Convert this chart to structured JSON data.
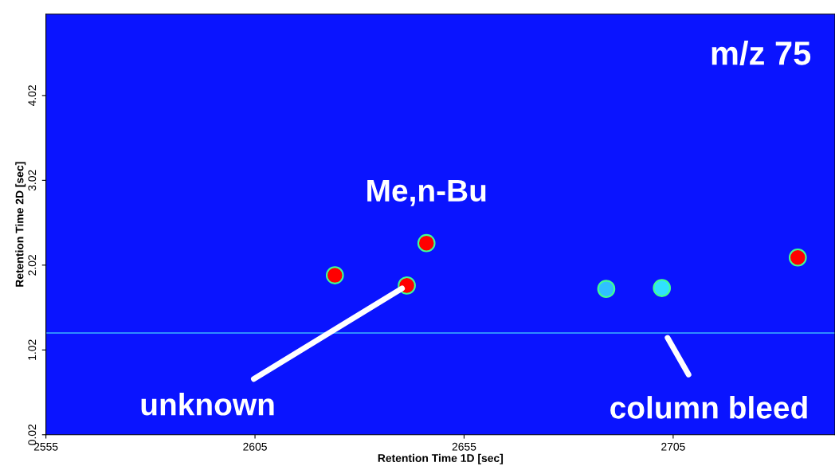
{
  "chart_data": {
    "type": "scatter",
    "xlabel": "Retention Time 1D [sec]",
    "ylabel": "Retention Time 2D [sec]",
    "x": [
      2624.1,
      2641.3,
      2646.0,
      2689.0,
      2702.3,
      2734.8
    ],
    "values": [
      1.9,
      1.78,
      2.28,
      1.74,
      1.75,
      2.11
    ],
    "colors": [
      "#ff0000",
      "#ff0000",
      "#ff0000",
      "#30c0ff",
      "#30e0ff",
      "#ff0000"
    ],
    "marker": "circle",
    "grid": false,
    "xlim": [
      2555,
      2743.7
    ],
    "ylim": [
      0.02,
      4.98
    ],
    "xticks": [
      2555,
      2605,
      2655,
      2705
    ],
    "yticks": [
      0.02,
      1.02,
      2.02,
      3.02,
      4.02
    ],
    "ref_lines": [
      {
        "axis": "y",
        "value": 1.22,
        "color": "#2f8cff"
      }
    ],
    "annotations": [
      "m/z 75",
      {
        "text": "Me,n-Bu",
        "x": 2646.0,
        "y": 2.28
      },
      {
        "text": "unknown",
        "x": 2641.3,
        "y": 1.78
      },
      {
        "text": "column bleed",
        "x": 2703,
        "y": 1.22
      }
    ]
  }
}
